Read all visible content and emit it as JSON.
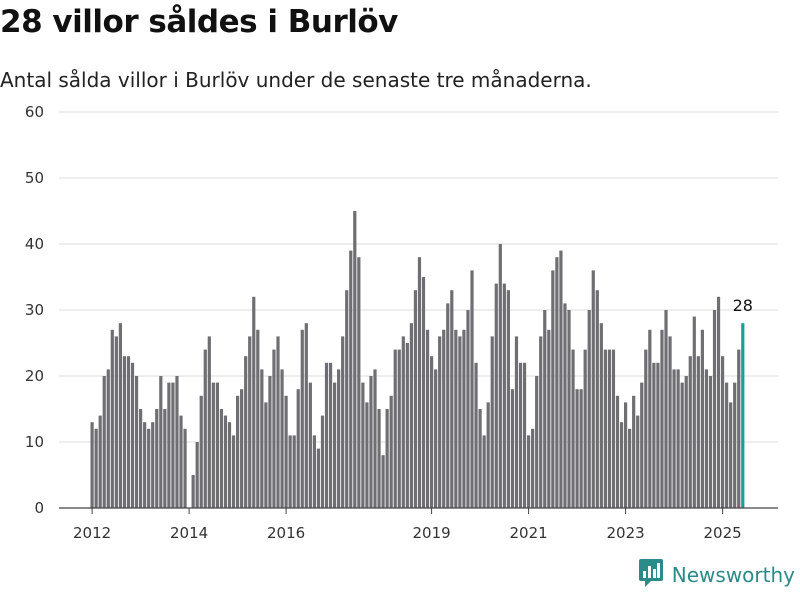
{
  "title": "28 villor såldes i Burlöv",
  "subtitle": "Antal sålda villor i Burlöv under de senaste tre månaderna.",
  "brand": {
    "name": "Newsworthy",
    "icon": "newsworthy-logo-icon",
    "color": "#2a8b88"
  },
  "colors": {
    "bar": "#6e6e73",
    "highlight": "#1a9e96",
    "grid": "#dedede",
    "axis": "#444444"
  },
  "chart_data": {
    "type": "bar",
    "x_start": "2012-01",
    "frequency": "monthly",
    "ylim": [
      0,
      60
    ],
    "yticks": [
      0,
      10,
      20,
      30,
      40,
      50,
      60
    ],
    "xticks": [
      "2012",
      "2014",
      "2016",
      "2019",
      "2021",
      "2023",
      "2025"
    ],
    "grid": true,
    "highlight_last": true,
    "last_value_label": "28",
    "values": [
      13,
      12,
      14,
      20,
      21,
      27,
      26,
      28,
      23,
      23,
      22,
      20,
      15,
      13,
      12,
      13,
      15,
      20,
      15,
      19,
      19,
      20,
      14,
      12,
      0,
      5,
      10,
      17,
      24,
      26,
      19,
      19,
      15,
      14,
      13,
      11,
      17,
      18,
      23,
      26,
      32,
      27,
      21,
      16,
      20,
      24,
      26,
      21,
      17,
      11,
      11,
      18,
      27,
      28,
      19,
      11,
      9,
      14,
      22,
      22,
      19,
      21,
      26,
      33,
      39,
      45,
      38,
      19,
      16,
      20,
      21,
      15,
      8,
      15,
      17,
      24,
      24,
      26,
      25,
      28,
      33,
      38,
      35,
      27,
      23,
      21,
      26,
      27,
      31,
      33,
      27,
      26,
      27,
      30,
      36,
      22,
      15,
      11,
      16,
      26,
      34,
      40,
      34,
      33,
      18,
      26,
      22,
      22,
      11,
      12,
      20,
      26,
      30,
      27,
      36,
      38,
      39,
      31,
      30,
      24,
      18,
      18,
      24,
      30,
      36,
      33,
      28,
      24,
      24,
      24,
      17,
      13,
      16,
      12,
      17,
      14,
      19,
      24,
      27,
      22,
      22,
      27,
      30,
      26,
      21,
      21,
      19,
      20,
      23,
      29,
      23,
      27,
      21,
      20,
      30,
      32,
      23,
      19,
      16,
      19,
      24,
      28
    ]
  }
}
